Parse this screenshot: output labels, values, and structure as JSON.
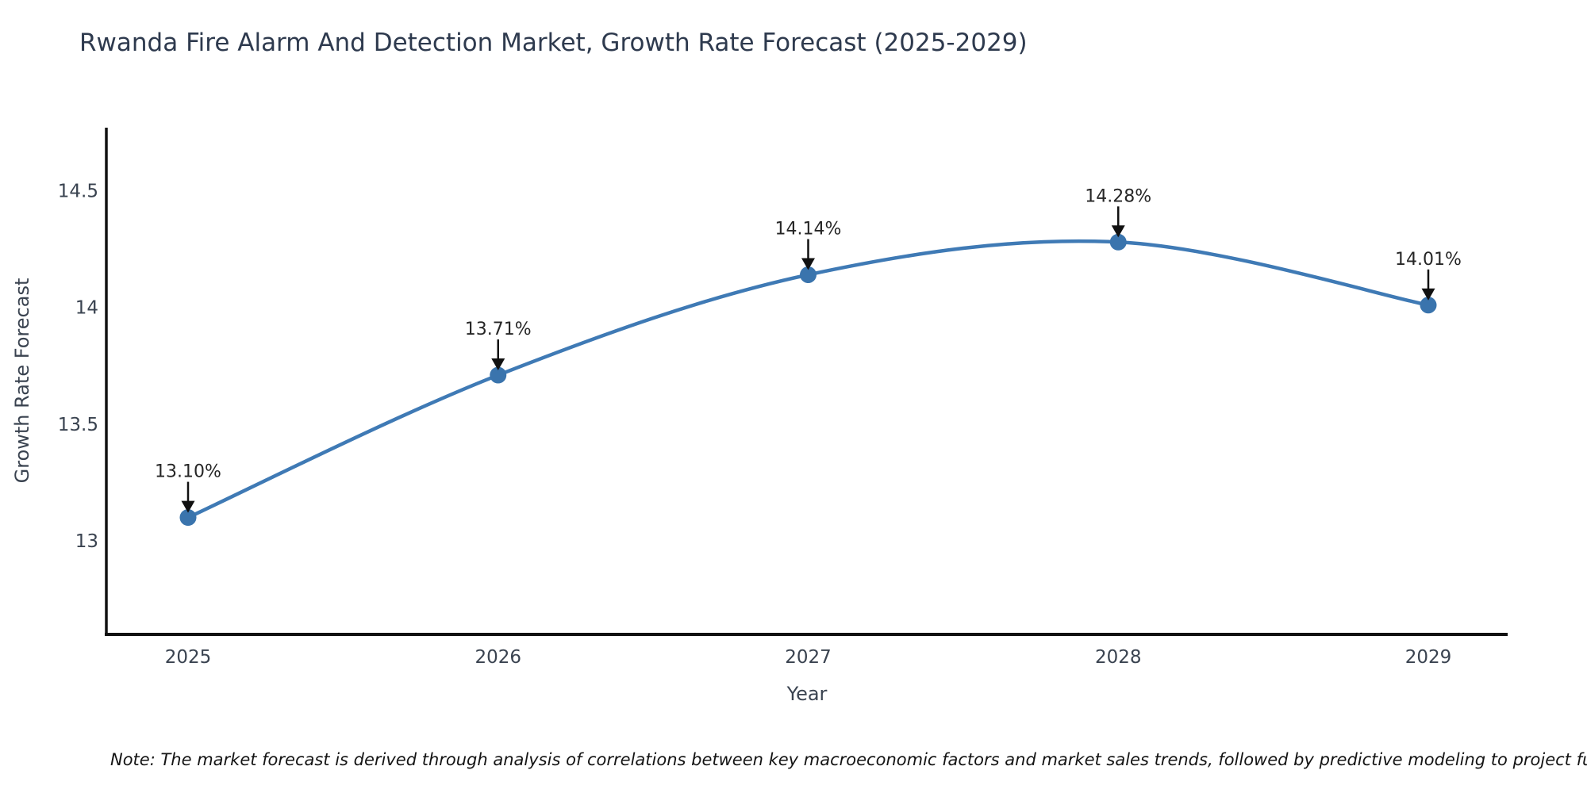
{
  "chart_data": {
    "type": "line",
    "title": "Rwanda Fire Alarm And Detection Market, Growth Rate Forecast (2025-2029)",
    "x": [
      2025,
      2026,
      2027,
      2028,
      2029
    ],
    "xtick_labels": [
      "2025",
      "2026",
      "2027",
      "2028",
      "2029"
    ],
    "series": [
      {
        "name": "Growth Rate Forecast",
        "values": [
          13.1,
          13.71,
          14.14,
          14.28,
          14.01
        ]
      }
    ],
    "point_labels": [
      "13.10%",
      "13.71%",
      "14.14%",
      "14.28%",
      "14.01%"
    ],
    "xlabel": "Year",
    "ylabel": "Growth Rate Forecast",
    "yticks": [
      13,
      13.5,
      14,
      14.5
    ],
    "ytick_labels": [
      "13",
      "13.5",
      "14",
      "14.5"
    ],
    "ylim": [
      12.6,
      14.77
    ],
    "grid": false,
    "legend": "none",
    "colors": {
      "line": "#3f7ab5",
      "marker": "#3a74ad",
      "axis": "#111111",
      "tick_label": "#3a4350",
      "annotation_text": "#262626",
      "annotation_arrow": "#111111",
      "title": "#2e3a4e"
    }
  },
  "footer": {
    "note": "Note: The market forecast is derived through analysis of correlations between key macroeconomic factors and market sales trends, followed by predictive modeling to project future sal"
  }
}
